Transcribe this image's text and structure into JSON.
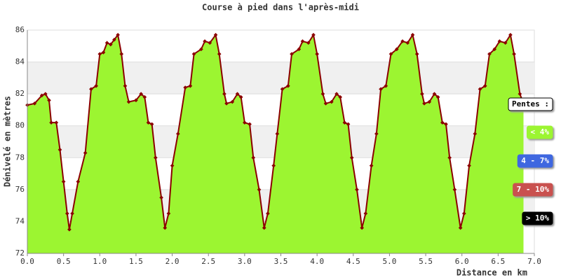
{
  "chart_data": {
    "type": "area",
    "title": "Course à pied dans l'après-midi",
    "x_label": "Distance en km",
    "y_label": "Dénivelé en mètres",
    "x": [
      0.0,
      0.1,
      0.2,
      0.25,
      0.3,
      0.33,
      0.4,
      0.45,
      0.5,
      0.55,
      0.58,
      0.62,
      0.7,
      0.8,
      0.88,
      0.95,
      1.0,
      1.05,
      1.1,
      1.15,
      1.2,
      1.25,
      1.3,
      1.35,
      1.4,
      1.5,
      1.57,
      1.62,
      1.67,
      1.72,
      1.77,
      1.85,
      1.9,
      1.95,
      2.0,
      2.08,
      2.18,
      2.25,
      2.3,
      2.4,
      2.45,
      2.52,
      2.6,
      2.65,
      2.72,
      2.75,
      2.83,
      2.9,
      2.95,
      3.0,
      3.07,
      3.12,
      3.2,
      3.27,
      3.32,
      3.4,
      3.45,
      3.52,
      3.6,
      3.65,
      3.75,
      3.8,
      3.88,
      3.95,
      4.0,
      4.08,
      4.12,
      4.2,
      4.27,
      4.32,
      4.38,
      4.43,
      4.48,
      4.55,
      4.62,
      4.67,
      4.75,
      4.82,
      4.88,
      4.95,
      5.02,
      5.1,
      5.18,
      5.25,
      5.32,
      5.38,
      5.45,
      5.48,
      5.55,
      5.62,
      5.67,
      5.73,
      5.78,
      5.83,
      5.9,
      5.98,
      6.03,
      6.1,
      6.18,
      6.25,
      6.32,
      6.38,
      6.45,
      6.52,
      6.6,
      6.67,
      6.72,
      6.8,
      6.85
    ],
    "values": [
      81.3,
      81.4,
      81.9,
      82.0,
      81.6,
      80.2,
      80.2,
      78.5,
      76.5,
      74.5,
      73.5,
      74.5,
      76.5,
      78.3,
      82.3,
      82.5,
      84.5,
      84.6,
      85.2,
      85.1,
      85.4,
      85.7,
      84.5,
      82.5,
      81.5,
      81.6,
      82.0,
      81.8,
      80.2,
      80.1,
      78.0,
      75.5,
      73.6,
      74.5,
      77.5,
      79.5,
      82.4,
      82.5,
      84.5,
      84.8,
      85.3,
      85.2,
      85.7,
      84.5,
      82.0,
      81.4,
      81.5,
      82.0,
      81.8,
      80.2,
      80.1,
      78.0,
      76.0,
      73.6,
      74.5,
      77.5,
      79.5,
      82.3,
      82.5,
      84.5,
      84.8,
      85.3,
      85.2,
      85.7,
      84.5,
      82.0,
      81.4,
      81.5,
      82.0,
      81.8,
      80.2,
      80.1,
      78.0,
      76.0,
      73.6,
      74.5,
      77.5,
      79.5,
      82.3,
      82.5,
      84.5,
      84.8,
      85.3,
      85.2,
      85.7,
      84.5,
      82.0,
      81.4,
      81.5,
      82.0,
      81.8,
      80.2,
      80.1,
      78.0,
      76.0,
      73.6,
      74.5,
      77.5,
      79.5,
      82.3,
      82.5,
      84.5,
      84.8,
      85.3,
      85.2,
      85.7,
      84.5,
      82.0,
      81.4
    ],
    "color": "#9cf531",
    "line_color": "#8b0000",
    "xlim": [
      0,
      7
    ],
    "ylim": [
      72,
      86
    ],
    "xticks": [
      {
        "value": 0,
        "label": "0.0"
      },
      0.5,
      {
        "value": 1,
        "label": "1.0"
      },
      1.5,
      {
        "value": 2,
        "label": "2.0"
      },
      2.5,
      {
        "value": 3,
        "label": "3.0"
      },
      3.5,
      {
        "value": 4,
        "label": "4.0"
      },
      4.5,
      {
        "value": 5,
        "label": "5.0"
      },
      5.5,
      {
        "value": 6,
        "label": "6.0"
      },
      6.5,
      {
        "value": 7,
        "label": "7.0"
      }
    ],
    "yticks": [
      72,
      74,
      76,
      78,
      80,
      82,
      84,
      86
    ],
    "grid": true,
    "legend_title": "Pentes :",
    "legend": [
      {
        "label": "< 4%",
        "color": "#9cf531"
      },
      {
        "label": "4 - 7%",
        "color": "#3f67e0"
      },
      {
        "label": "7 - 10%",
        "color": "#c9514f"
      },
      {
        "label": "> 10%",
        "color": "#000000"
      }
    ]
  }
}
